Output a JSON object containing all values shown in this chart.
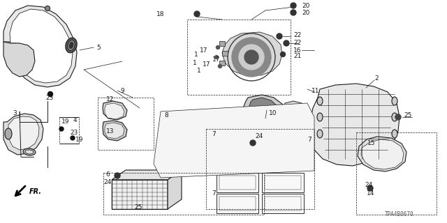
{
  "bg_color": "#ffffff",
  "fig_width": 6.4,
  "fig_height": 3.2,
  "dpi": 100,
  "watermark": "TPA4B0670",
  "label_fontsize": 6.5,
  "label_fontsize_small": 5.5,
  "line_color": "#1a1a1a",
  "text_color": "#1a1a1a",
  "lw_main": 0.8,
  "lw_thin": 0.4,
  "lw_leader": 0.5
}
